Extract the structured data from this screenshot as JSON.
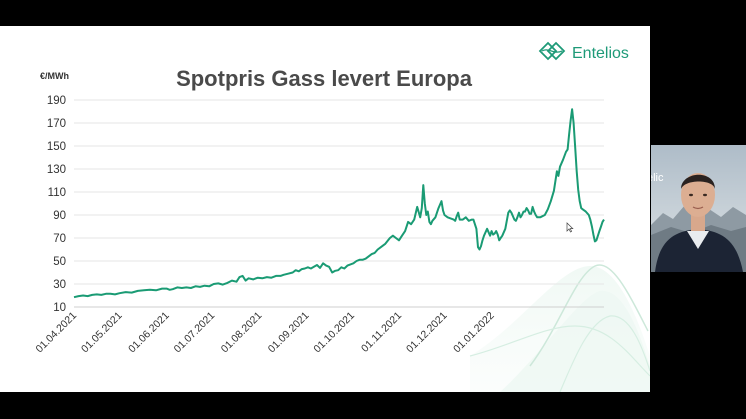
{
  "logo": {
    "text": "Entelios",
    "icon": "entelios-leaf-logo-icon"
  },
  "presenter_video": {
    "label": "presenter-webcam-feed",
    "background_text": "elic"
  },
  "slide_controls": [
    "previous-icon",
    "next-icon",
    "pen-icon",
    "zoom-icon",
    "subtitles-icon",
    "more-icon"
  ],
  "colors": {
    "line": "#1a9b74",
    "brand": "#1e9a78",
    "grid": "#e6e6e6"
  },
  "chart_data": {
    "type": "line",
    "title": "Spotpris Gass levert Europa",
    "ylabel": "€/MWh",
    "xlabel": "",
    "ylim": [
      10,
      190
    ],
    "yticks": [
      10,
      30,
      50,
      70,
      90,
      110,
      130,
      150,
      170,
      190
    ],
    "grid": true,
    "x_tick_labels": [
      "01.04.2021",
      "01.05.2021",
      "01.06.2021",
      "01.07.2021",
      "01.08.2021",
      "01.09.2021",
      "01.10.2021",
      "01.11.2021",
      "01.12.2021",
      "01.01.2022"
    ],
    "series": [
      {
        "values": [
          [
            0,
            18.5
          ],
          [
            3,
            19.5
          ],
          [
            6,
            20
          ],
          [
            9,
            19.5
          ],
          [
            12,
            20.5
          ],
          [
            15,
            21
          ],
          [
            18,
            20.5
          ],
          [
            21,
            21.5
          ],
          [
            24,
            21.5
          ],
          [
            27,
            21
          ],
          [
            30,
            22
          ],
          [
            34,
            23
          ],
          [
            38,
            22.5
          ],
          [
            42,
            24
          ],
          [
            46,
            24.5
          ],
          [
            50,
            25
          ],
          [
            54,
            24.5
          ],
          [
            58,
            26
          ],
          [
            61,
            26
          ],
          [
            63,
            25
          ],
          [
            65,
            25.5
          ],
          [
            68,
            27
          ],
          [
            71,
            26.5
          ],
          [
            74,
            27
          ],
          [
            77,
            26.5
          ],
          [
            80,
            28
          ],
          [
            83,
            27.5
          ],
          [
            86,
            28.5
          ],
          [
            89,
            28
          ],
          [
            92,
            30
          ],
          [
            95,
            30.5
          ],
          [
            98,
            29.5
          ],
          [
            101,
            31
          ],
          [
            104,
            33
          ],
          [
            107,
            32
          ],
          [
            109,
            36
          ],
          [
            111,
            37
          ],
          [
            113,
            33
          ],
          [
            115,
            35
          ],
          [
            118,
            34
          ],
          [
            121,
            35.5
          ],
          [
            124,
            35
          ],
          [
            127,
            36
          ],
          [
            130,
            35.5
          ],
          [
            133,
            37
          ],
          [
            136,
            37
          ],
          [
            138,
            38
          ],
          [
            141,
            39
          ],
          [
            144,
            40
          ],
          [
            146,
            42
          ],
          [
            148,
            41
          ],
          [
            150,
            43
          ],
          [
            152,
            43.5
          ],
          [
            154,
            44.5
          ],
          [
            156,
            43.5
          ],
          [
            158,
            45
          ],
          [
            160,
            46.5
          ],
          [
            162,
            44
          ],
          [
            164,
            48
          ],
          [
            166,
            46
          ],
          [
            168,
            45
          ],
          [
            170,
            40
          ],
          [
            172,
            41.5
          ],
          [
            174,
            42
          ],
          [
            176,
            44.5
          ],
          [
            178,
            43.5
          ],
          [
            180,
            46
          ],
          [
            182,
            47
          ],
          [
            184,
            48
          ],
          [
            186,
            50
          ],
          [
            188,
            51
          ],
          [
            190,
            51
          ],
          [
            192,
            52
          ],
          [
            194,
            54
          ],
          [
            196,
            56
          ],
          [
            198,
            57
          ],
          [
            200,
            60
          ],
          [
            202,
            62
          ],
          [
            205,
            65
          ],
          [
            208,
            70
          ],
          [
            210,
            72
          ],
          [
            212,
            70
          ],
          [
            214,
            68
          ],
          [
            216,
            72
          ],
          [
            218,
            76
          ],
          [
            220,
            84
          ],
          [
            222,
            82
          ],
          [
            224,
            86
          ],
          [
            226,
            97
          ],
          [
            228,
            88
          ],
          [
            229,
            96
          ],
          [
            230,
            116
          ],
          [
            231,
            100
          ],
          [
            232,
            90
          ],
          [
            233,
            93
          ],
          [
            234,
            84
          ],
          [
            235,
            82
          ],
          [
            236,
            85
          ],
          [
            238,
            88
          ],
          [
            240,
            96
          ],
          [
            242,
            102
          ],
          [
            243,
            94
          ],
          [
            244,
            90
          ],
          [
            246,
            88
          ],
          [
            248,
            87
          ],
          [
            250,
            86
          ],
          [
            251,
            85
          ],
          [
            252,
            89
          ],
          [
            253,
            92
          ],
          [
            254,
            86
          ],
          [
            256,
            86
          ],
          [
            258,
            88
          ],
          [
            260,
            85
          ],
          [
            262,
            86
          ],
          [
            263,
            86
          ],
          [
            264,
            82
          ],
          [
            265,
            78
          ],
          [
            266,
            62
          ],
          [
            267,
            60
          ],
          [
            268,
            63
          ],
          [
            269,
            68
          ],
          [
            270,
            72
          ],
          [
            272,
            78
          ],
          [
            273,
            75
          ],
          [
            274,
            72
          ],
          [
            275,
            76
          ],
          [
            276,
            73
          ],
          [
            277,
            74
          ],
          [
            278,
            76
          ],
          [
            279,
            73
          ],
          [
            280,
            68
          ],
          [
            281,
            70
          ],
          [
            282,
            72
          ],
          [
            284,
            78
          ],
          [
            286,
            92
          ],
          [
            287,
            94
          ],
          [
            288,
            92
          ],
          [
            290,
            86
          ],
          [
            291,
            85
          ],
          [
            292,
            88
          ],
          [
            293,
            92
          ],
          [
            294,
            88
          ],
          [
            295,
            90
          ],
          [
            296,
            93
          ],
          [
            297,
            93
          ],
          [
            298,
            96
          ],
          [
            299,
            94
          ],
          [
            300,
            91
          ],
          [
            301,
            91
          ],
          [
            302,
            97
          ],
          [
            303,
            93
          ],
          [
            304,
            90
          ],
          [
            305,
            88
          ],
          [
            307,
            88
          ],
          [
            310,
            90
          ],
          [
            312,
            95
          ],
          [
            314,
            102
          ],
          [
            316,
            111
          ],
          [
            318,
            128
          ],
          [
            319,
            124
          ],
          [
            320,
            132
          ],
          [
            322,
            138
          ],
          [
            324,
            145
          ],
          [
            325,
            147
          ],
          [
            326,
            160
          ],
          [
            327,
            172
          ],
          [
            328,
            182
          ],
          [
            329,
            170
          ],
          [
            330,
            150
          ],
          [
            331,
            128
          ],
          [
            332,
            112
          ],
          [
            333,
            102
          ],
          [
            334,
            96
          ],
          [
            335,
            95
          ],
          [
            337,
            93
          ],
          [
            339,
            90
          ],
          [
            340,
            86
          ],
          [
            341,
            80
          ],
          [
            342,
            73
          ],
          [
            343,
            67
          ],
          [
            344,
            68
          ],
          [
            345,
            72
          ],
          [
            346,
            76
          ],
          [
            347,
            80
          ],
          [
            348,
            84
          ],
          [
            349,
            86
          ]
        ]
      }
    ]
  }
}
